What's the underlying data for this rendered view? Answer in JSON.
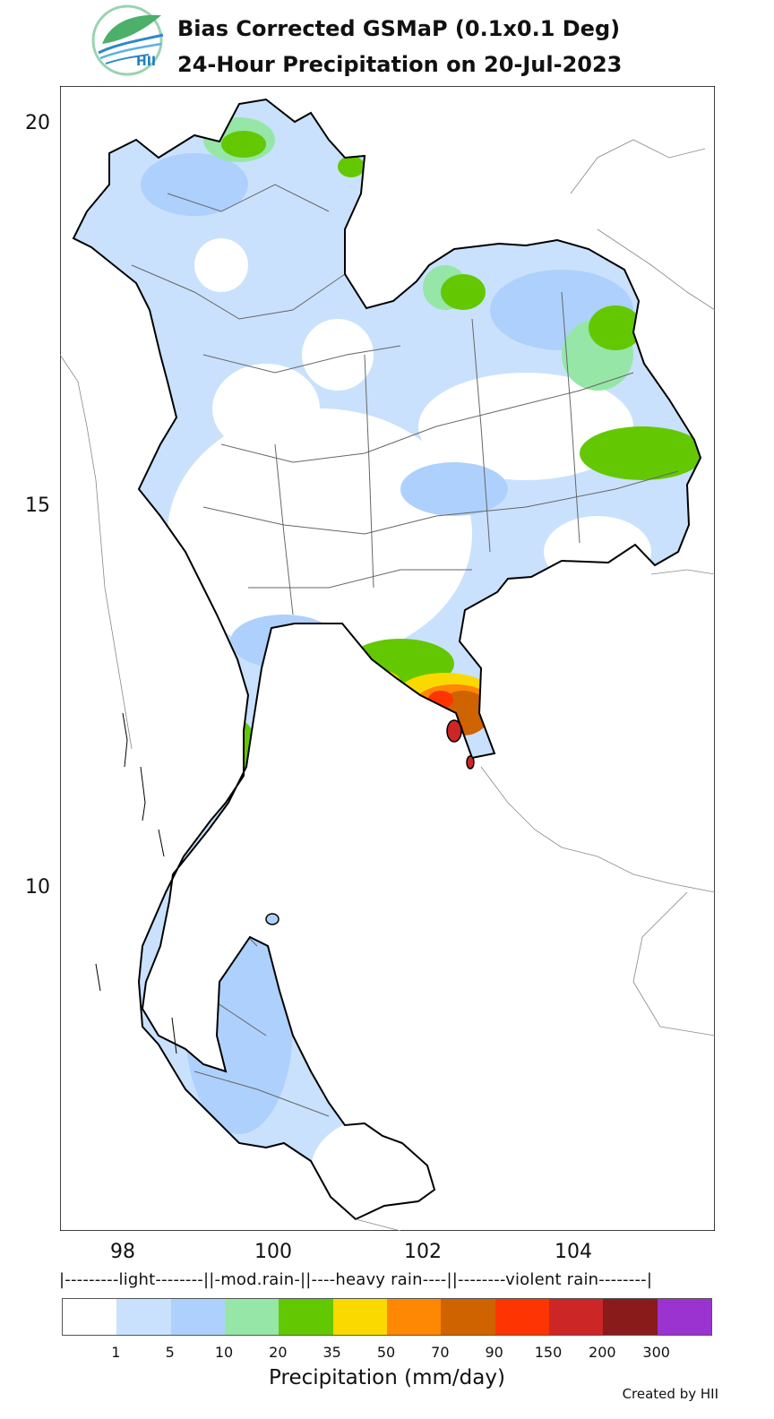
{
  "header": {
    "title_line1": "Bias Corrected GSMaP (0.1x0.1 Deg)",
    "title_line2": "24-Hour Precipitation on 20-Jul-2023",
    "logo_text": "HII"
  },
  "map": {
    "lat_ticks": [
      "20",
      "15",
      "10"
    ],
    "lon_ticks": [
      "98",
      "100",
      "102",
      "104"
    ]
  },
  "legend": {
    "bands": "|---------light--------||-mod.rain-||----heavy rain----||--------violent rain--------|",
    "colors": [
      "#ffffff",
      "#c9e1fc",
      "#aed0fc",
      "#96e6a8",
      "#63c802",
      "#fad901",
      "#fe8704",
      "#cf6300",
      "#fe3402",
      "#cd2626",
      "#891b1b",
      "#9a33cf"
    ],
    "ticks": [
      "1",
      "5",
      "10",
      "20",
      "35",
      "50",
      "70",
      "90",
      "150",
      "200",
      "300"
    ],
    "title": "Precipitation (mm/day)"
  },
  "footer": {
    "credit": "Created by HII"
  }
}
